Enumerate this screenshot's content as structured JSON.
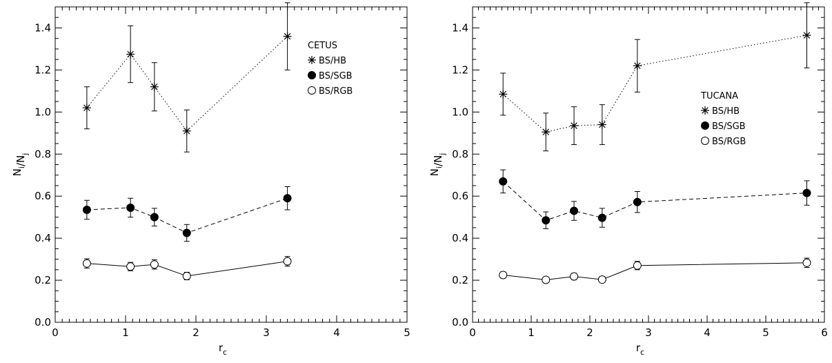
{
  "chart_data": [
    {
      "type": "line",
      "xlabel": "r_c",
      "ylabel": "N_i/N_j",
      "xlim": [
        0,
        5
      ],
      "ylim": [
        0,
        1.5
      ],
      "xticks": [
        "0",
        "1",
        "2",
        "3",
        "4",
        "5"
      ],
      "yticks": [
        "0.0",
        "0.2",
        "0.4",
        "0.6",
        "0.8",
        "1.0",
        "1.2",
        "1.4"
      ],
      "legend_title": "CETUS",
      "legend_placement": "top-right",
      "grid": false,
      "x": [
        0.45,
        1.07,
        1.41,
        1.87,
        3.3
      ],
      "series": [
        {
          "name": "BS/HB",
          "marker": "asterisk",
          "linestyle": "dotted",
          "values": [
            1.02,
            1.275,
            1.12,
            0.91,
            1.36
          ],
          "errors": [
            0.1,
            0.135,
            0.115,
            0.1,
            0.16
          ]
        },
        {
          "name": "BS/SGB",
          "marker": "filled-circle",
          "linestyle": "dashed",
          "values": [
            0.535,
            0.545,
            0.5,
            0.425,
            0.59
          ],
          "errors": [
            0.045,
            0.045,
            0.042,
            0.04,
            0.055
          ]
        },
        {
          "name": "BS/RGB",
          "marker": "open-circle",
          "linestyle": "solid",
          "values": [
            0.28,
            0.265,
            0.275,
            0.22,
            0.29
          ],
          "errors": [
            0.022,
            0.02,
            0.022,
            0.018,
            0.023
          ]
        }
      ]
    },
    {
      "type": "line",
      "xlabel": "r_c",
      "ylabel": "N_i/N_j",
      "xlim": [
        0,
        6
      ],
      "ylim": [
        0,
        1.5
      ],
      "xticks": [
        "0",
        "1",
        "2",
        "3",
        "4",
        "5",
        "6"
      ],
      "yticks": [
        "0.0",
        "0.2",
        "0.4",
        "0.6",
        "0.8",
        "1.0",
        "1.2",
        "1.4"
      ],
      "legend_title": "TUCANA",
      "legend_placement": "top-right",
      "grid": false,
      "x": [
        0.52,
        1.25,
        1.73,
        2.21,
        2.81,
        5.7
      ],
      "series": [
        {
          "name": "BS/HB",
          "marker": "asterisk",
          "linestyle": "dotted",
          "values": [
            1.085,
            0.905,
            0.935,
            0.94,
            1.22,
            1.365
          ],
          "errors": [
            0.1,
            0.09,
            0.09,
            0.095,
            0.125,
            0.155
          ]
        },
        {
          "name": "BS/SGB",
          "marker": "filled-circle",
          "linestyle": "dashed",
          "values": [
            0.67,
            0.485,
            0.53,
            0.497,
            0.572,
            0.615
          ],
          "errors": [
            0.055,
            0.04,
            0.045,
            0.045,
            0.05,
            0.058
          ]
        },
        {
          "name": "BS/RGB",
          "marker": "open-circle",
          "linestyle": "solid",
          "values": [
            0.225,
            0.202,
            0.218,
            0.203,
            0.27,
            0.283
          ],
          "errors": [
            0.015,
            0.013,
            0.015,
            0.014,
            0.02,
            0.022
          ]
        }
      ]
    }
  ]
}
